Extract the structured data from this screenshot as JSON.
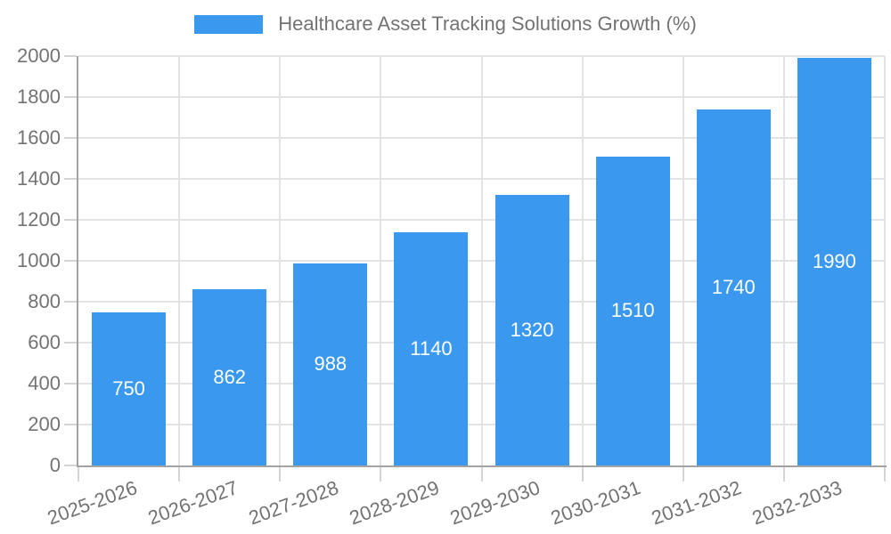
{
  "chart_data": {
    "type": "bar",
    "title": "Healthcare Asset Tracking Solutions Growth (%)",
    "categories": [
      "2025-2026",
      "2026-2027",
      "2027-2028",
      "2028-2029",
      "2029-2030",
      "2030-2031",
      "2031-2032",
      "2032-2033"
    ],
    "values": [
      750,
      862,
      988,
      1140,
      1320,
      1510,
      1740,
      1990
    ],
    "value_labels": [
      "750",
      "862",
      "988",
      "1140",
      "1320",
      "1510",
      "1740",
      "1990"
    ],
    "xlabel": "",
    "ylabel": "",
    "ylim": [
      0,
      2000
    ],
    "yticks": [
      0,
      200,
      400,
      600,
      800,
      1000,
      1200,
      1400,
      1600,
      1800,
      2000
    ],
    "grid": true,
    "legend_position": "top-center",
    "colors": {
      "bar": "#3A99EE",
      "grid": "#E3E3E3",
      "axis": "#A3A3A3",
      "tickmark": "#D4D4D4",
      "tick_label": "#737373",
      "value_label": "#FFFFFF",
      "background": "#FFFFFF"
    }
  }
}
